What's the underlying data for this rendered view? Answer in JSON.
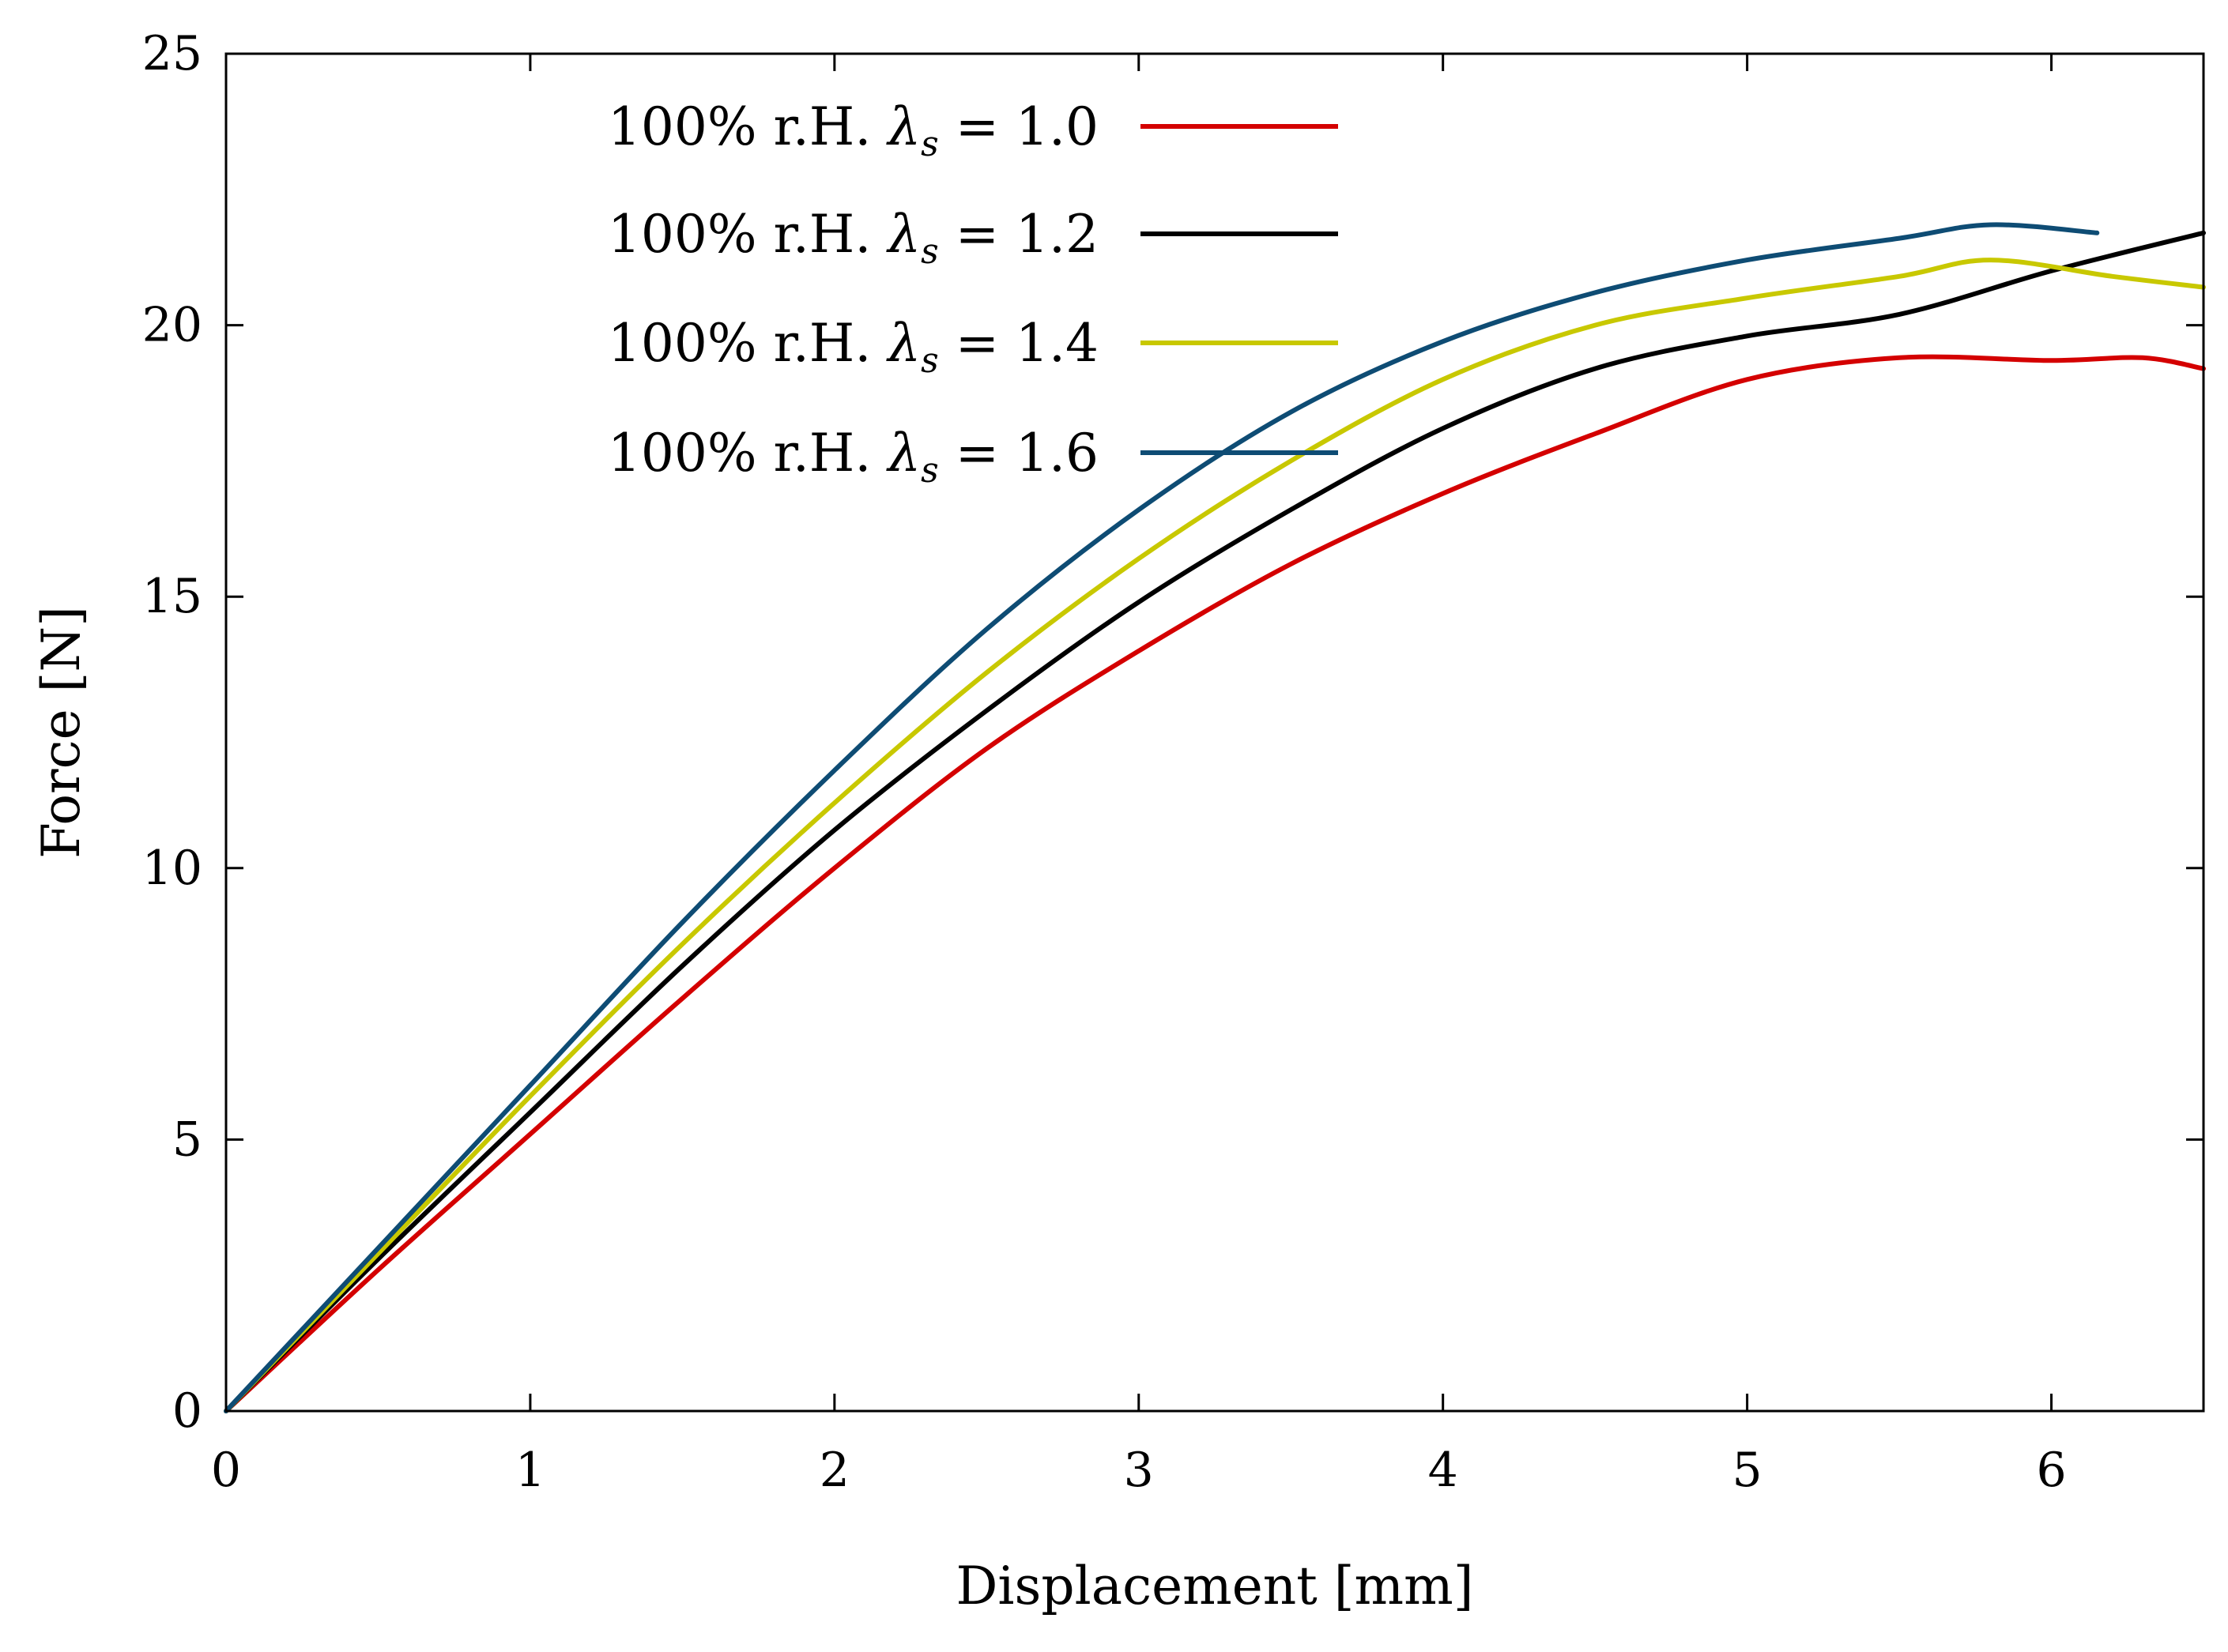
{
  "chart_data": {
    "type": "line",
    "title": "",
    "xlabel": "Displacement [mm]",
    "ylabel": "Force [N]",
    "xlim": [
      0,
      6.5
    ],
    "ylim": [
      0,
      25
    ],
    "xticks": [
      0,
      1,
      2,
      3,
      4,
      5,
      6
    ],
    "yticks": [
      0,
      5,
      10,
      15,
      20,
      25
    ],
    "xtick_labels": [
      "0",
      "1",
      "2",
      "3",
      "4",
      "5",
      "6"
    ],
    "ytick_labels": [
      "0",
      "5",
      "10",
      "15",
      "20",
      "25"
    ],
    "grid": false,
    "legend_position": "top-center",
    "series": [
      {
        "name": "100% r.H. λs = 1.0",
        "legend_prefix": "100% r.H. ",
        "legend_symbol": "λ",
        "legend_subscript": "s",
        "legend_suffix": " = 1.0",
        "color": "#d40000",
        "points": [
          [
            0,
            0
          ],
          [
            0.5,
            2.6
          ],
          [
            1,
            5.1
          ],
          [
            1.5,
            7.6
          ],
          [
            2,
            10.0
          ],
          [
            2.5,
            12.2
          ],
          [
            3,
            14.0
          ],
          [
            3.5,
            15.6
          ],
          [
            4,
            16.9
          ],
          [
            4.5,
            18.0
          ],
          [
            5,
            19.0
          ],
          [
            5.5,
            19.4
          ],
          [
            6,
            19.35
          ],
          [
            6.3,
            19.4
          ],
          [
            6.5,
            19.2
          ]
        ]
      },
      {
        "name": "100% r.H. λs = 1.2",
        "legend_prefix": "100% r.H. ",
        "legend_symbol": "λ",
        "legend_subscript": "s",
        "legend_suffix": " = 1.2",
        "color": "#000000",
        "points": [
          [
            0,
            0
          ],
          [
            0.5,
            2.8
          ],
          [
            1,
            5.5
          ],
          [
            1.5,
            8.2
          ],
          [
            2,
            10.7
          ],
          [
            2.5,
            12.9
          ],
          [
            3,
            14.9
          ],
          [
            3.5,
            16.6
          ],
          [
            4,
            18.1
          ],
          [
            4.5,
            19.2
          ],
          [
            5,
            19.8
          ],
          [
            5.5,
            20.2
          ],
          [
            6,
            21.0
          ],
          [
            6.5,
            21.7
          ]
        ]
      },
      {
        "name": "100% r.H. λs = 1.4",
        "legend_prefix": "100% r.H. ",
        "legend_symbol": "λ",
        "legend_subscript": "s",
        "legend_suffix": " = 1.4",
        "color": "#c8c800",
        "points": [
          [
            0,
            0
          ],
          [
            0.5,
            2.9
          ],
          [
            1,
            5.8
          ],
          [
            1.5,
            8.6
          ],
          [
            2,
            11.2
          ],
          [
            2.5,
            13.6
          ],
          [
            3,
            15.7
          ],
          [
            3.5,
            17.5
          ],
          [
            4,
            19.0
          ],
          [
            4.5,
            20.0
          ],
          [
            5,
            20.5
          ],
          [
            5.5,
            20.9
          ],
          [
            5.8,
            21.2
          ],
          [
            6.2,
            20.9
          ],
          [
            6.5,
            20.7
          ]
        ]
      },
      {
        "name": "100% r.H. λs = 1.6",
        "legend_prefix": "100% r.H. ",
        "legend_symbol": "λ",
        "legend_subscript": "s",
        "legend_suffix": " = 1.6",
        "color": "#0e4c74",
        "points": [
          [
            0,
            0
          ],
          [
            0.5,
            3.0
          ],
          [
            1,
            6.0
          ],
          [
            1.5,
            9.0
          ],
          [
            2,
            11.8
          ],
          [
            2.5,
            14.4
          ],
          [
            3,
            16.6
          ],
          [
            3.5,
            18.4
          ],
          [
            4,
            19.7
          ],
          [
            4.5,
            20.6
          ],
          [
            5,
            21.2
          ],
          [
            5.5,
            21.6
          ],
          [
            5.8,
            21.85
          ],
          [
            6.15,
            21.7
          ]
        ]
      }
    ]
  }
}
